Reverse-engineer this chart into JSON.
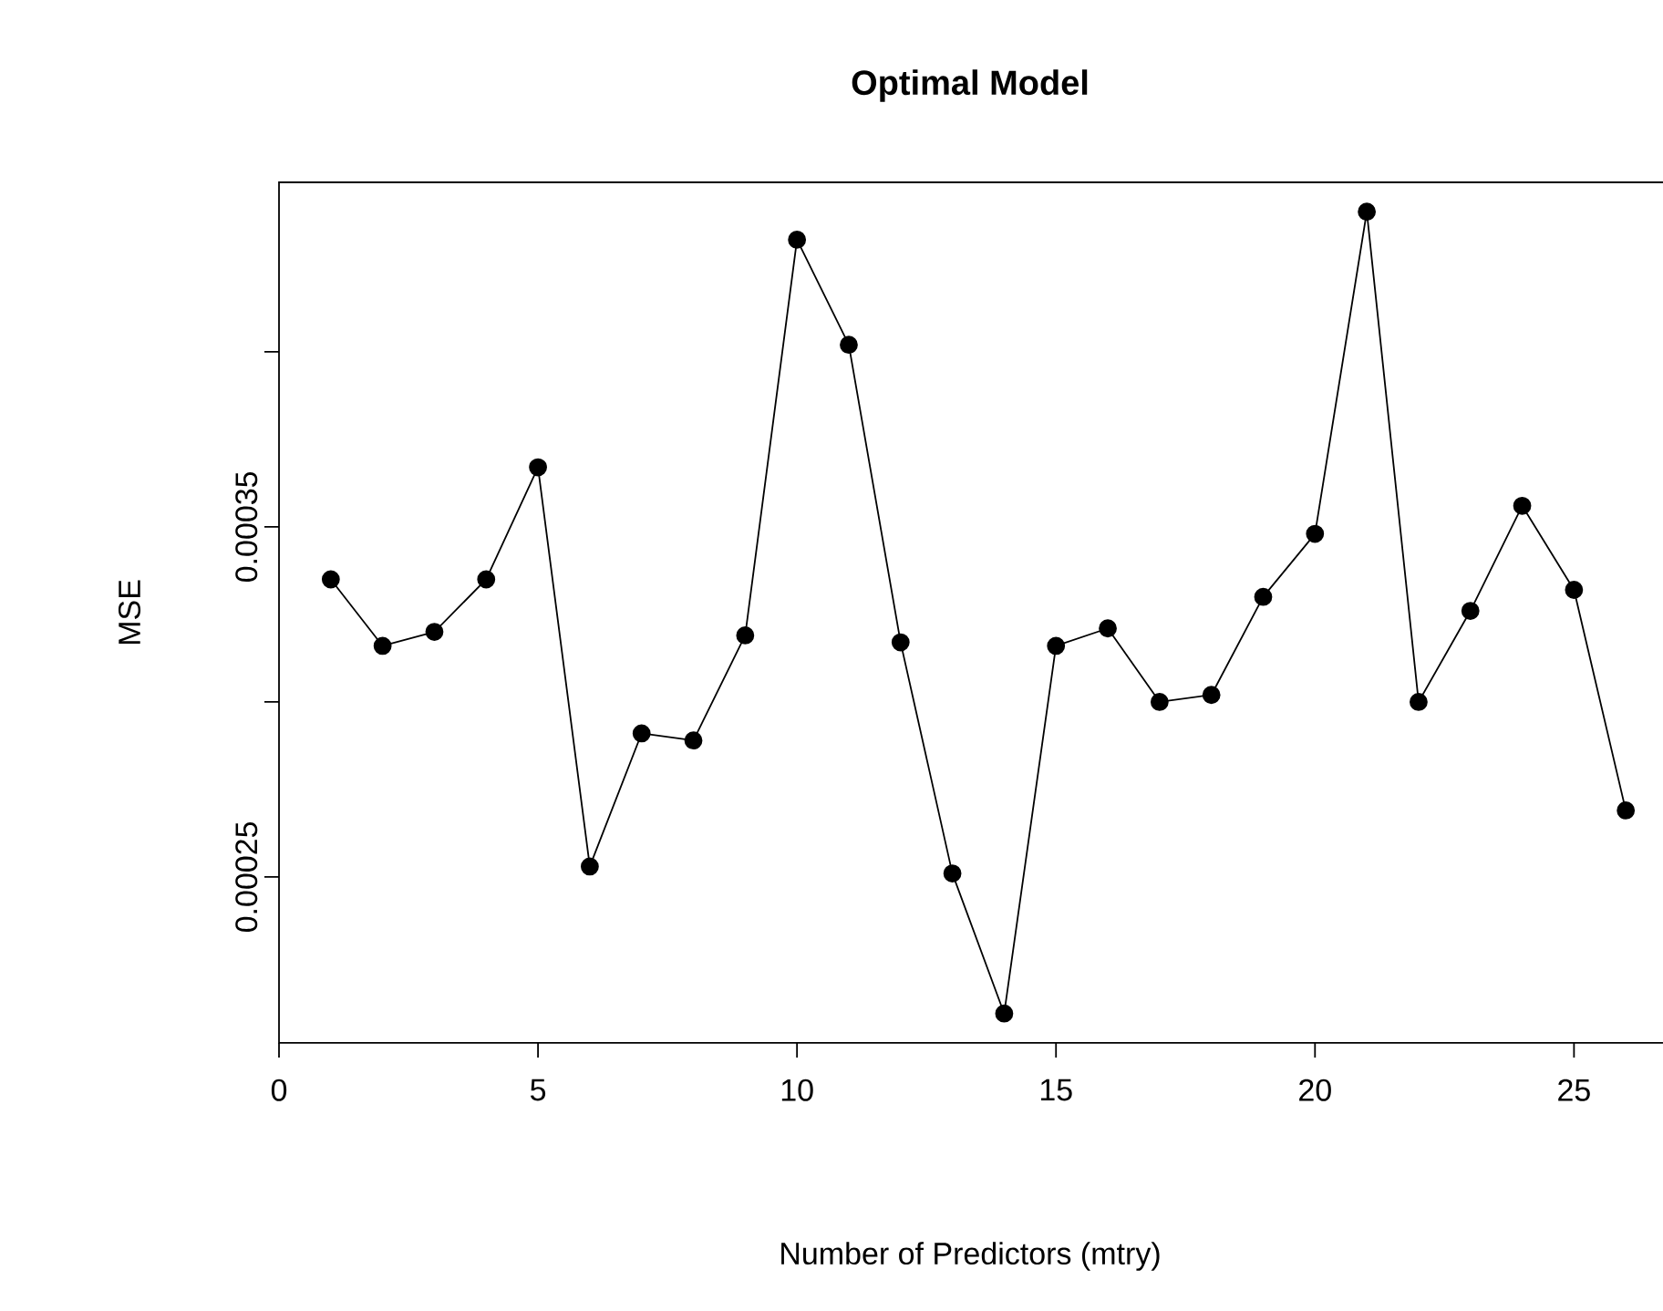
{
  "chart_data": {
    "type": "line",
    "title": "Optimal Model",
    "xlabel": "Number of Predictors (mtry)",
    "ylabel": "MSE",
    "x": [
      1,
      2,
      3,
      4,
      5,
      6,
      7,
      8,
      9,
      10,
      11,
      12,
      13,
      14,
      15,
      16,
      17,
      18,
      19,
      20,
      21,
      22,
      23,
      24,
      25,
      26
    ],
    "series": [
      {
        "color": "#000000",
        "values": [
          0.000335,
          0.000316,
          0.00032,
          0.000335,
          0.000367,
          0.000253,
          0.000291,
          0.000289,
          0.000319,
          0.000432,
          0.000402,
          0.000317,
          0.000251,
          0.000211,
          0.000316,
          0.000321,
          0.0003,
          0.000302,
          0.00033,
          0.000348,
          0.00044,
          0.0003,
          0.000326,
          0.000356,
          0.000332,
          0.000269
        ]
      }
    ],
    "xlim": [
      0,
      27
    ],
    "ylim": [
      0.0002026,
      0.0004484
    ],
    "xticks": [
      0,
      5,
      10,
      15,
      20,
      25
    ],
    "yticks": [
      0.00025,
      {
        "value": 0.0003,
        "label": null
      },
      0.00035,
      {
        "value": 0.0004,
        "label": null
      }
    ],
    "marker": "circle",
    "line_style": "solid",
    "grid": false
  }
}
